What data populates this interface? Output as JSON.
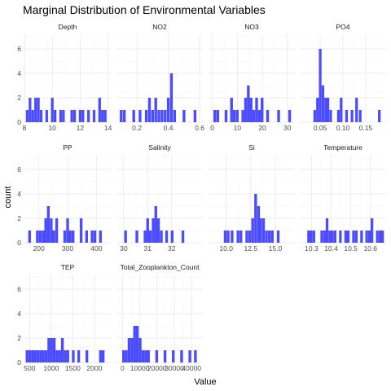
{
  "chart_data": {
    "type": "bar",
    "title": "Marginal Distribution of Environmental Variables",
    "xlabel": "Value",
    "ylabel": "count",
    "ylim": [
      0,
      7.2
    ],
    "yticks": [
      0,
      2,
      4,
      6
    ],
    "bar_color": "#4c4cff",
    "grid": true,
    "panels": [
      {
        "name": "Depth",
        "xlim": [
          8,
          14.2
        ],
        "xticks": [
          8,
          10,
          12,
          14
        ],
        "xtick_labels": [
          "8",
          "10",
          "12",
          "14"
        ],
        "bin_width": 0.19,
        "bins": [
          [
            8.2,
            1
          ],
          [
            8.4,
            2
          ],
          [
            8.6,
            1
          ],
          [
            8.8,
            2
          ],
          [
            9.0,
            2
          ],
          [
            9.2,
            1
          ],
          [
            9.6,
            1
          ],
          [
            10.0,
            2
          ],
          [
            10.2,
            1
          ],
          [
            10.6,
            1
          ],
          [
            10.8,
            1
          ],
          [
            11.4,
            1
          ],
          [
            11.6,
            1
          ],
          [
            12.0,
            1
          ],
          [
            12.2,
            1
          ],
          [
            12.6,
            1
          ],
          [
            13.0,
            1
          ],
          [
            13.4,
            2
          ],
          [
            13.6,
            1
          ],
          [
            13.8,
            1
          ]
        ]
      },
      {
        "name": "NO2",
        "xlim": [
          0.07,
          0.62
        ],
        "xticks": [
          0.2,
          0.4,
          0.6
        ],
        "xtick_labels": [
          "0.2",
          "0.4",
          "0.6"
        ],
        "bin_width": 0.0175,
        "bins": [
          [
            0.1,
            1
          ],
          [
            0.12,
            1
          ],
          [
            0.18,
            1
          ],
          [
            0.22,
            1
          ],
          [
            0.26,
            1
          ],
          [
            0.28,
            2
          ],
          [
            0.3,
            1
          ],
          [
            0.32,
            2
          ],
          [
            0.34,
            1
          ],
          [
            0.36,
            1
          ],
          [
            0.38,
            1
          ],
          [
            0.4,
            2
          ],
          [
            0.42,
            4
          ],
          [
            0.44,
            1
          ],
          [
            0.5,
            1
          ],
          [
            0.57,
            1
          ]
        ]
      },
      {
        "name": "NO3",
        "xlim": [
          -1.5,
          33
        ],
        "xticks": [
          0,
          10,
          20,
          30
        ],
        "xtick_labels": [
          "0",
          "10",
          "20",
          "30"
        ],
        "bin_width": 1.1,
        "bins": [
          [
            1,
            1
          ],
          [
            2.2,
            1
          ],
          [
            5.5,
            1
          ],
          [
            7.7,
            2
          ],
          [
            8.8,
            1
          ],
          [
            10,
            1
          ],
          [
            12.2,
            1
          ],
          [
            13.3,
            2
          ],
          [
            14.4,
            3
          ],
          [
            15.5,
            2
          ],
          [
            16.6,
            1
          ],
          [
            17.7,
            2
          ],
          [
            18.8,
            1
          ],
          [
            19.9,
            2
          ],
          [
            22.1,
            1
          ],
          [
            26.5,
            1
          ],
          [
            30.9,
            1
          ]
        ]
      },
      {
        "name": "PO4",
        "xlim": [
          0.005,
          0.195
        ],
        "xticks": [
          0.05,
          0.1,
          0.15
        ],
        "xtick_labels": [
          "0.05",
          "0.10",
          "0.15"
        ],
        "bin_width": 0.0058,
        "bins": [
          [
            0.038,
            1
          ],
          [
            0.044,
            2
          ],
          [
            0.05,
            6
          ],
          [
            0.056,
            3
          ],
          [
            0.062,
            2
          ],
          [
            0.067,
            2
          ],
          [
            0.073,
            1
          ],
          [
            0.09,
            1
          ],
          [
            0.096,
            2
          ],
          [
            0.108,
            1
          ],
          [
            0.12,
            1
          ],
          [
            0.13,
            2
          ],
          [
            0.138,
            1
          ],
          [
            0.18,
            1
          ]
        ]
      },
      {
        "name": "PP",
        "xlim": [
          150,
          450
        ],
        "xticks": [
          200,
          300,
          400
        ],
        "xtick_labels": [
          "200",
          "300",
          "400"
        ],
        "bin_width": 9.5,
        "bins": [
          [
            168,
            1
          ],
          [
            195,
            1
          ],
          [
            205,
            1
          ],
          [
            215,
            1
          ],
          [
            224,
            2
          ],
          [
            233,
            3
          ],
          [
            243,
            2
          ],
          [
            252,
            1
          ],
          [
            262,
            2
          ],
          [
            290,
            1
          ],
          [
            300,
            2
          ],
          [
            309,
            1
          ],
          [
            319,
            1
          ],
          [
            347,
            2
          ],
          [
            366,
            1
          ],
          [
            385,
            1
          ],
          [
            395,
            1
          ],
          [
            414,
            1
          ]
        ]
      },
      {
        "name": "Salinity",
        "xlim": [
          29.7,
          33.3
        ],
        "xticks": [
          30,
          31,
          32
        ],
        "xtick_labels": [
          "30",
          "31",
          "32"
        ],
        "bin_width": 0.114,
        "bins": [
          [
            30.08,
            1
          ],
          [
            30.55,
            1
          ],
          [
            30.89,
            1
          ],
          [
            31.0,
            2
          ],
          [
            31.11,
            1
          ],
          [
            31.23,
            2
          ],
          [
            31.34,
            3
          ],
          [
            31.45,
            2
          ],
          [
            31.57,
            1
          ],
          [
            31.79,
            1
          ],
          [
            32.02,
            1
          ],
          [
            32.47,
            1
          ]
        ]
      },
      {
        "name": "Si",
        "xlim": [
          8.2,
          17
        ],
        "xticks": [
          10,
          12.5,
          15
        ],
        "xtick_labels": [
          "10.0",
          "12.5",
          "15.0"
        ],
        "bin_width": 0.28,
        "bins": [
          [
            9.9,
            1
          ],
          [
            10.2,
            1
          ],
          [
            10.6,
            1
          ],
          [
            11.2,
            1
          ],
          [
            11.5,
            1
          ],
          [
            12.1,
            1
          ],
          [
            12.4,
            1
          ],
          [
            12.7,
            2
          ],
          [
            13.0,
            4
          ],
          [
            13.3,
            3
          ],
          [
            13.5,
            2
          ],
          [
            13.8,
            2
          ],
          [
            14.1,
            1
          ],
          [
            14.4,
            1
          ],
          [
            14.7,
            1
          ],
          [
            15.3,
            1
          ]
        ]
      },
      {
        "name": "Temperature",
        "xlim": [
          10.24,
          10.68
        ],
        "xticks": [
          10.3,
          10.4,
          10.5,
          10.6
        ],
        "xtick_labels": [
          "10.3",
          "10.4",
          "10.5",
          "10.6"
        ],
        "bin_width": 0.0135,
        "bins": [
          [
            10.285,
            1
          ],
          [
            10.298,
            1
          ],
          [
            10.312,
            1
          ],
          [
            10.352,
            1
          ],
          [
            10.366,
            1
          ],
          [
            10.379,
            2
          ],
          [
            10.393,
            1
          ],
          [
            10.406,
            1
          ],
          [
            10.42,
            1
          ],
          [
            10.447,
            1
          ],
          [
            10.474,
            1
          ],
          [
            10.487,
            1
          ],
          [
            10.514,
            1
          ],
          [
            10.528,
            1
          ],
          [
            10.555,
            1
          ],
          [
            10.581,
            1
          ],
          [
            10.595,
            1
          ],
          [
            10.608,
            2
          ],
          [
            10.635,
            1
          ],
          [
            10.649,
            1
          ],
          [
            10.662,
            1
          ]
        ]
      },
      {
        "name": "TEP",
        "xlim": [
          380,
          2380
        ],
        "xticks": [
          500,
          1000,
          1500,
          2000
        ],
        "xtick_labels": [
          "500",
          "1000",
          "1500",
          "2000"
        ],
        "bin_width": 63,
        "bins": [
          [
            440,
            1
          ],
          [
            503,
            1
          ],
          [
            566,
            1
          ],
          [
            629,
            1
          ],
          [
            692,
            1
          ],
          [
            755,
            1
          ],
          [
            818,
            1
          ],
          [
            881,
            1
          ],
          [
            944,
            2
          ],
          [
            1007,
            2
          ],
          [
            1070,
            2
          ],
          [
            1133,
            1
          ],
          [
            1196,
            1
          ],
          [
            1259,
            2
          ],
          [
            1322,
            1
          ],
          [
            1385,
            1
          ],
          [
            1511,
            1
          ],
          [
            1637,
            1
          ],
          [
            1826,
            1
          ],
          [
            2141,
            1
          ],
          [
            2204,
            1
          ]
        ]
      },
      {
        "name": "Total_Zooplankton_Count",
        "xlim": [
          -3500,
          46500
        ],
        "xticks": [
          0,
          10000,
          20000,
          30000,
          40000
        ],
        "xtick_labels": [
          "0",
          "10000",
          "20000",
          "30000",
          "40000"
        ],
        "bin_width": 1600,
        "bins": [
          [
            600,
            1
          ],
          [
            2200,
            1
          ],
          [
            3800,
            2
          ],
          [
            5400,
            2
          ],
          [
            7000,
            3
          ],
          [
            8600,
            3
          ],
          [
            10200,
            2
          ],
          [
            11800,
            1
          ],
          [
            13400,
            1
          ],
          [
            15000,
            1
          ],
          [
            19800,
            1
          ],
          [
            24600,
            1
          ],
          [
            29400,
            1
          ],
          [
            34200,
            1
          ],
          [
            39000,
            1
          ],
          [
            42200,
            1
          ]
        ]
      }
    ]
  }
}
